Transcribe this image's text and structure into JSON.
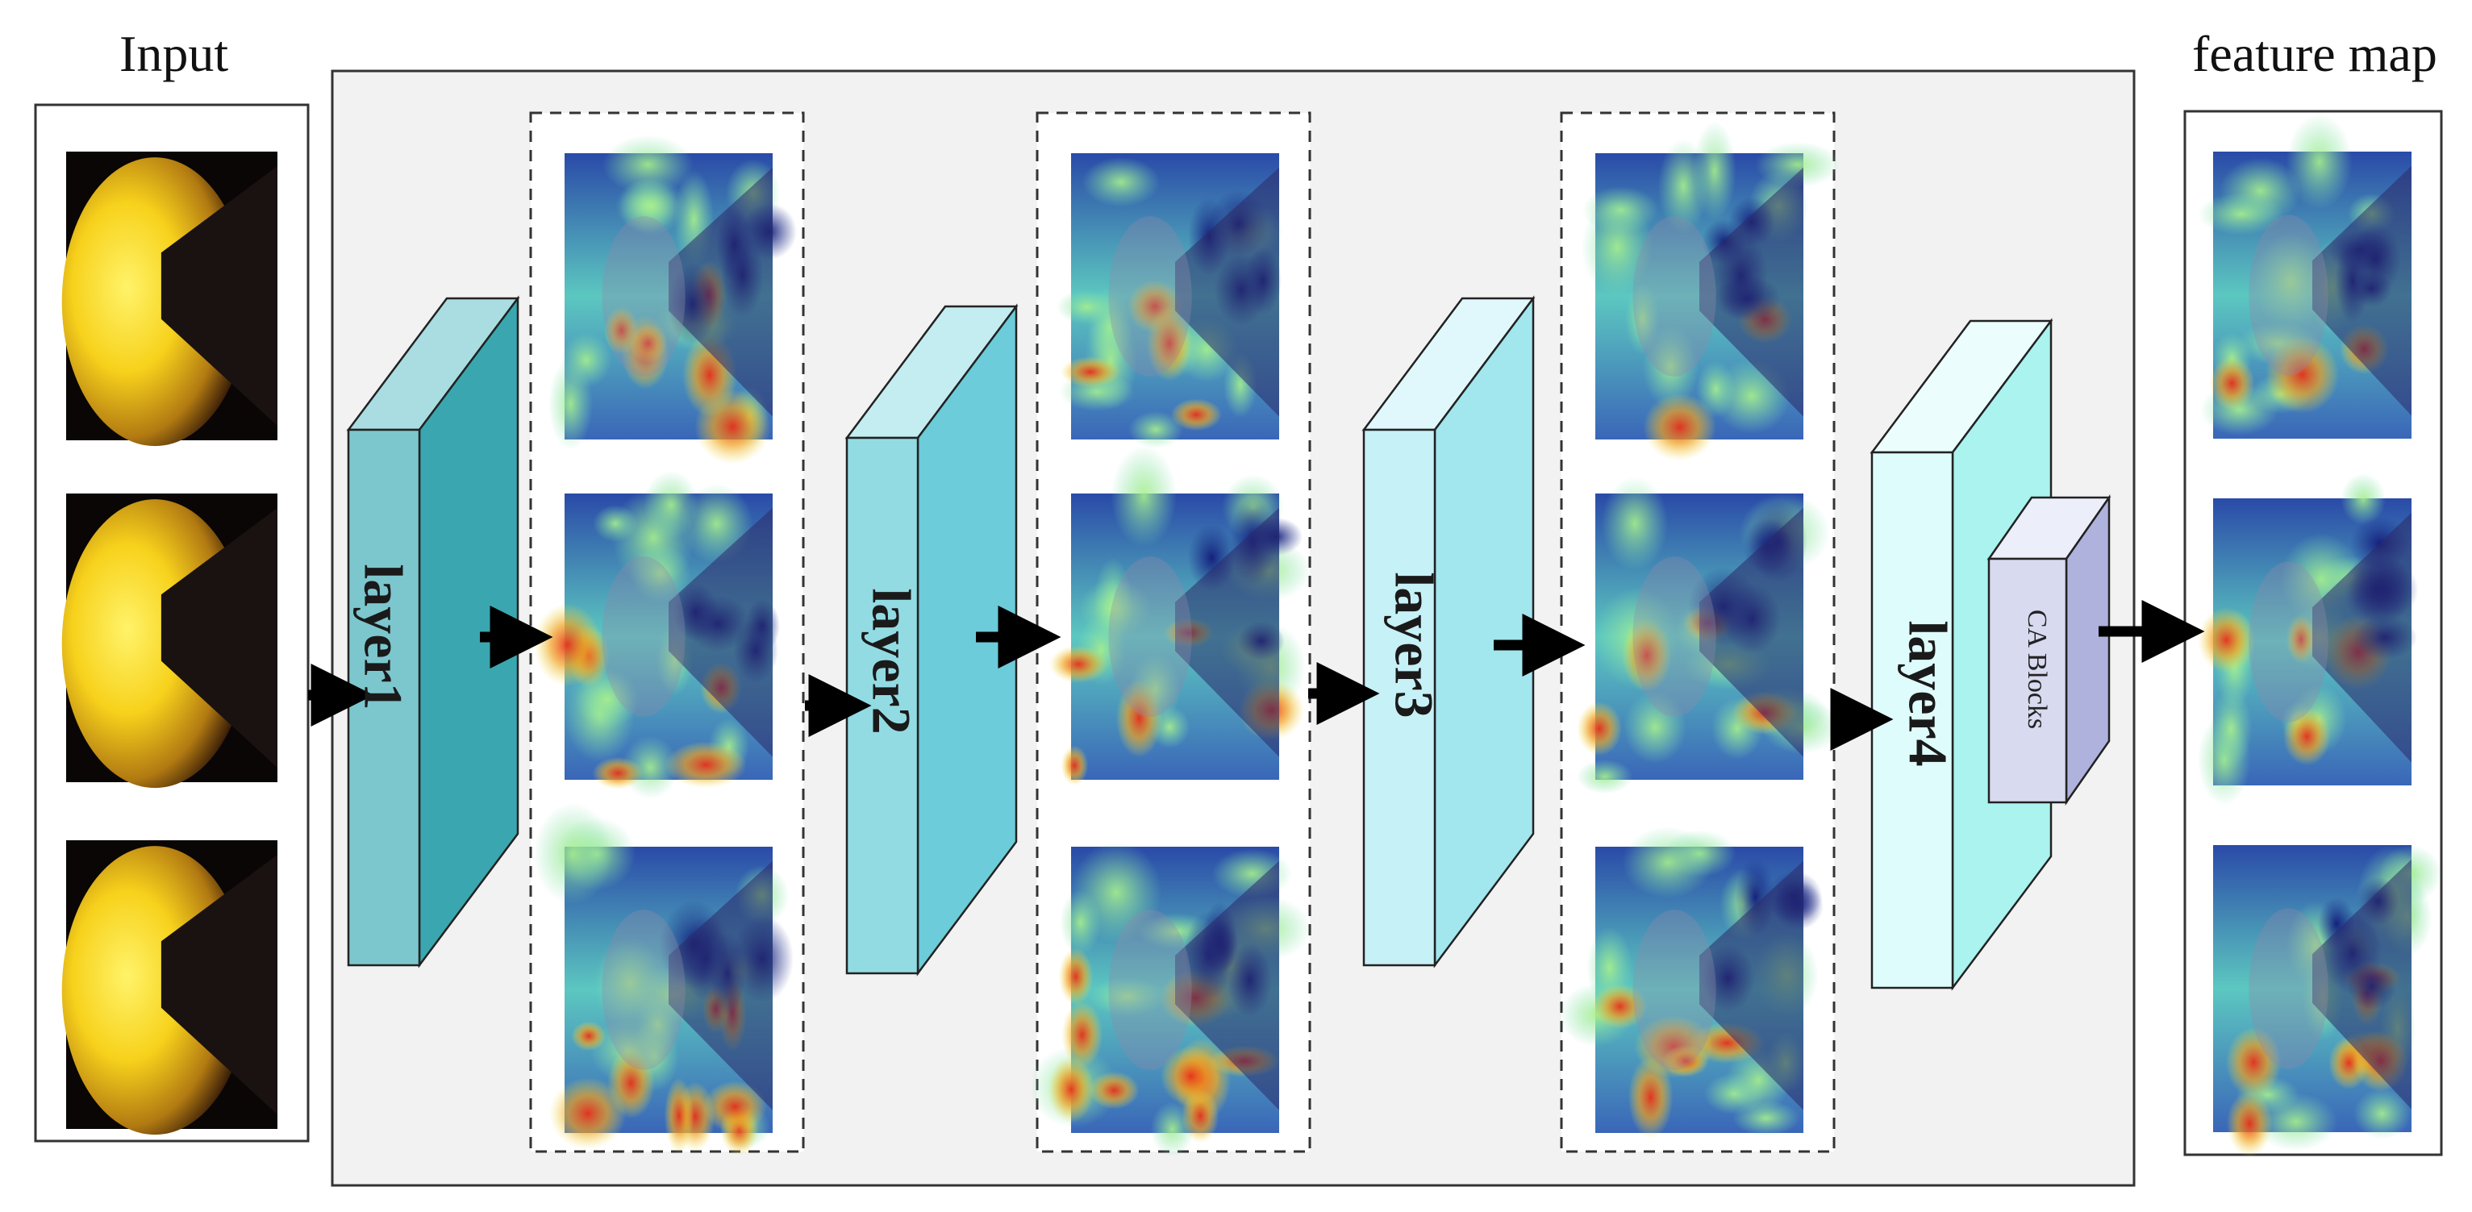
{
  "diagram": {
    "input_label": "Input",
    "output_label": "feature map",
    "layers": [
      {
        "label": "layer1",
        "front": "#7cc7cd",
        "side": "#3aa7b0",
        "top": "#a9dde2"
      },
      {
        "label": "layer2",
        "front": "#93dbe3",
        "side": "#6cccd9",
        "top": "#c3edf1"
      },
      {
        "label": "layer3",
        "front": "#c6f1f6",
        "side": "#a2e6ee",
        "top": "#e0f8fb"
      },
      {
        "label": "layer4",
        "front": "#dffcfc",
        "side": "#aaf3ef",
        "top": "#ebfdfd"
      }
    ],
    "attention_block": {
      "label": "CA Blocks",
      "front": "#d8daf0",
      "side": "#aeb2dd",
      "top": "#eceefa"
    },
    "colors": {
      "panel_fill": "#f2f2f2",
      "border": "#333333",
      "arrow": "#000000",
      "heat_low": "#1a2a8c",
      "heat_mid": "#7fe0b0",
      "heat_high": "#d62a14",
      "photo_bright": "#ffe23a",
      "photo_dark": "#0a0606"
    }
  }
}
